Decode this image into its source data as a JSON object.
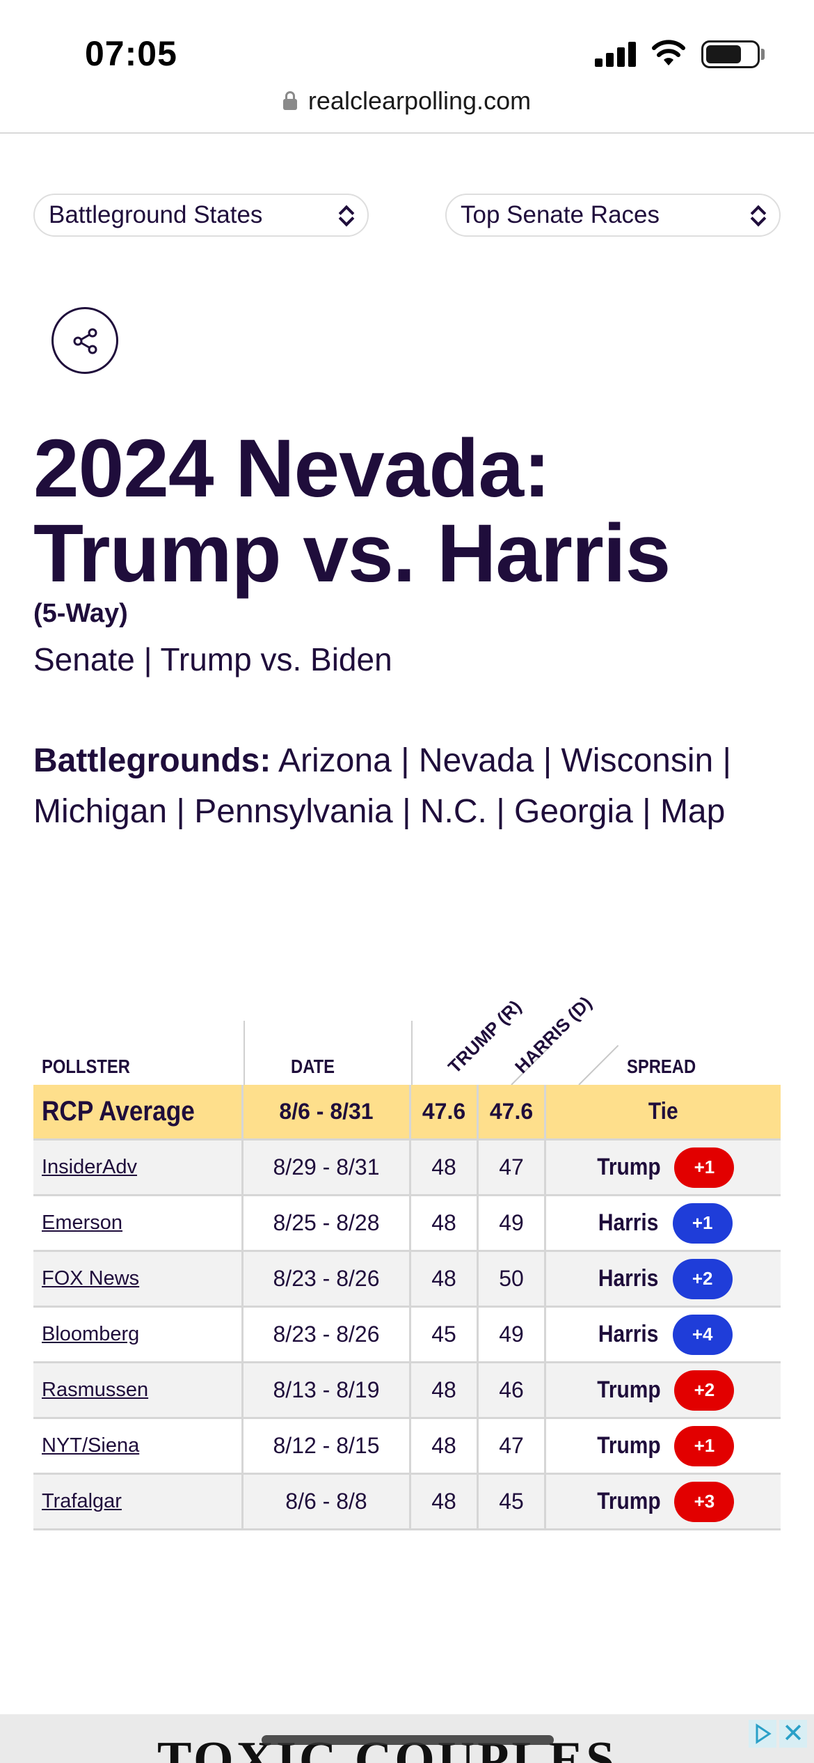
{
  "status_bar": {
    "time": "07:05"
  },
  "browser": {
    "url": "realclearpolling.com"
  },
  "selects": {
    "left": "Battleground States",
    "right": "Top Senate Races"
  },
  "title": "2024 Nevada: Trump vs. Harris",
  "subtitle": "(5-Way)",
  "links": {
    "senate": "Senate",
    "sep": " | ",
    "trump_biden": "Trump vs. Biden"
  },
  "battlegrounds": {
    "label": "Battlegrounds:",
    "items": [
      "Arizona",
      "Nevada",
      "Wisconsin",
      "Michigan",
      "Pennsylvania",
      "N.C.",
      "Georgia",
      "Map"
    ]
  },
  "table": {
    "headers": {
      "pollster": "POLLSTER",
      "date": "DATE",
      "trump": "TRUMP (R)",
      "harris": "HARRIS (D)",
      "spread": "SPREAD"
    },
    "average": {
      "pollster": "RCP Average",
      "date": "8/6 - 8/31",
      "trump": "47.6",
      "harris": "47.6",
      "spread": "Tie"
    },
    "rows": [
      {
        "pollster": "InsiderAdv",
        "date": "8/29 - 8/31",
        "trump": "48",
        "harris": "47",
        "leader": "Trump",
        "margin": "+1",
        "party": "r"
      },
      {
        "pollster": "Emerson",
        "date": "8/25 - 8/28",
        "trump": "48",
        "harris": "49",
        "leader": "Harris",
        "margin": "+1",
        "party": "d"
      },
      {
        "pollster": "FOX News",
        "date": "8/23 - 8/26",
        "trump": "48",
        "harris": "50",
        "leader": "Harris",
        "margin": "+2",
        "party": "d"
      },
      {
        "pollster": "Bloomberg",
        "date": "8/23 - 8/26",
        "trump": "45",
        "harris": "49",
        "leader": "Harris",
        "margin": "+4",
        "party": "d"
      },
      {
        "pollster": "Rasmussen",
        "date": "8/13 - 8/19",
        "trump": "48",
        "harris": "46",
        "leader": "Trump",
        "margin": "+2",
        "party": "r"
      },
      {
        "pollster": "NYT/Siena",
        "date": "8/12 - 8/15",
        "trump": "48",
        "harris": "47",
        "leader": "Trump",
        "margin": "+1",
        "party": "r"
      },
      {
        "pollster": "Trafalgar",
        "date": "8/6 - 8/8",
        "trump": "48",
        "harris": "45",
        "leader": "Trump",
        "margin": "+3",
        "party": "r"
      }
    ]
  },
  "colors": {
    "text": "#1f0d3b",
    "republican": "#e20000",
    "democrat": "#1f3dd9",
    "average_bg": "#fedf8c"
  },
  "ad": {
    "text": "TOXIC COUPLES"
  }
}
